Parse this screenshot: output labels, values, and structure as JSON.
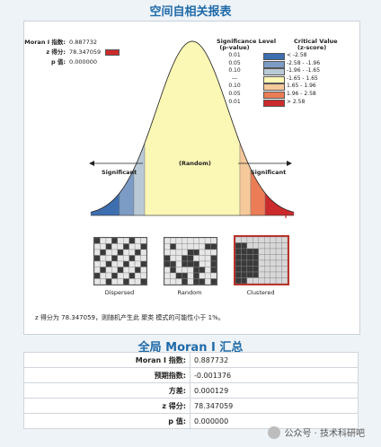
{
  "page": {
    "title": "空间自相关报表",
    "summary_title": "全局 Moran I 汇总"
  },
  "stats": {
    "moran_label": "Moran I 指数:",
    "moran_value": "0.887732",
    "z_label": "z 得分:",
    "z_value": "78.347059",
    "p_label": "p 值:",
    "p_value": "0.000000"
  },
  "legend": {
    "header_sig": "Significance Level",
    "header_sig_sub": "(p-value)",
    "header_crit": "Critical Value",
    "header_crit_sub": "(z-score)",
    "rows": [
      {
        "p": "0.01",
        "z": "< -2.58",
        "color": "#3d6fb0"
      },
      {
        "p": "0.05",
        "z": "-2.58 - -1.96",
        "color": "#7d9cc5"
      },
      {
        "p": "0.10",
        "z": "-1.96 - -1.65",
        "color": "#b9cad6"
      },
      {
        "p": "---",
        "z": "-1.65 - 1.65",
        "color": "#fbf7b4"
      },
      {
        "p": "0.10",
        "z": "1.65 - 1.96",
        "color": "#f5c99a"
      },
      {
        "p": "0.05",
        "z": "1.96 - 2.58",
        "color": "#ea7d55"
      },
      {
        "p": "0.01",
        "z": "> 2.58",
        "color": "#cc2b2b"
      }
    ]
  },
  "curve": {
    "significant_left": "Significant",
    "random": "(Random)",
    "significant_right": "Significant"
  },
  "thumbs": [
    {
      "label": "Dispersed"
    },
    {
      "label": "Random"
    },
    {
      "label": "Clustered"
    }
  ],
  "note": "z 得分为 78.347059，则随机产生此 聚类 模式的可能性小于 1%。",
  "summary": [
    {
      "label": "Moran I 指数:",
      "value": "0.887732"
    },
    {
      "label": "预期指数:",
      "value": "-0.001376"
    },
    {
      "label": "方差:",
      "value": "0.000129"
    },
    {
      "label": "z 得分:",
      "value": "78.347059"
    },
    {
      "label": "p 值:",
      "value": "0.000000"
    }
  ],
  "watermark": "公众号 · 技术科研吧"
}
